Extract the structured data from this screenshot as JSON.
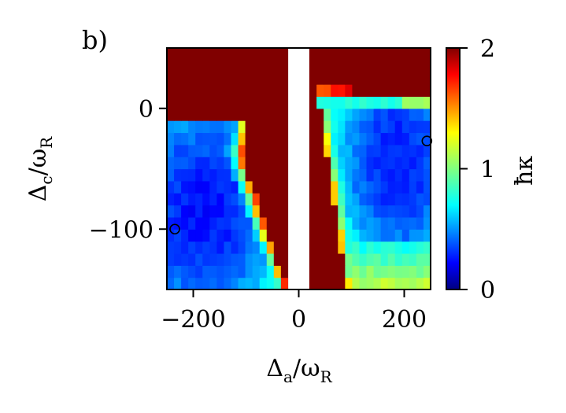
{
  "panel_label": "b)",
  "colors": {
    "frame": "#000000",
    "gap": "#ffffff",
    "saturated": "#800000"
  },
  "chart_data": {
    "type": "heatmap",
    "title": "",
    "xlabel_main": "Δ",
    "xlabel_sub": "a",
    "xlabel_den": "/ω",
    "xlabel_den_sub": "R",
    "ylabel_main": "Δ",
    "ylabel_sub": "c",
    "ylabel_den": "/ω",
    "ylabel_den_sub": "R",
    "xlim": [
      -250,
      250
    ],
    "ylim": [
      -150,
      50
    ],
    "xticks": [
      -200,
      0,
      200
    ],
    "xtick_labels": [
      "−200",
      "0",
      "200"
    ],
    "yticks": [
      0,
      -100
    ],
    "ytick_labels": [
      "0",
      "−100"
    ],
    "colorbar": {
      "label": "ħκ",
      "range": [
        0,
        2
      ],
      "ticks": [
        0,
        1,
        2
      ],
      "tick_labels": [
        "0",
        "1",
        "2"
      ],
      "colormap": "jet",
      "saturates_above": 2
    },
    "gap_x": [
      -20,
      20
    ],
    "nx": 37,
    "ny": 20,
    "markers": [
      {
        "x": -235,
        "y": -100,
        "shape": "open-circle"
      },
      {
        "x": 243,
        "y": -27,
        "shape": "open-circle"
      }
    ],
    "note_values": "Cells with ħκ ≥ 2 are dark red; blue interior ≈ 0.3–0.6, rising through cyan/yellow near region boundaries"
  }
}
